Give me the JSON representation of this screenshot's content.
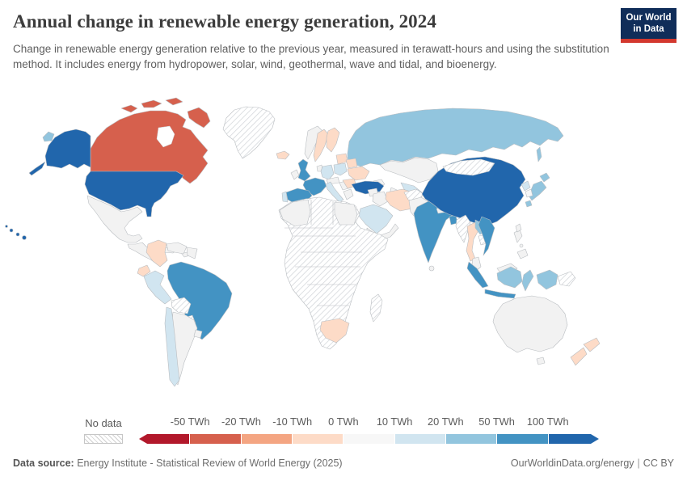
{
  "header": {
    "title": "Annual change in renewable energy generation, 2024",
    "subtitle": "Change in renewable energy generation relative to the previous year, measured in terawatt-hours and using the substitution method. It includes energy from hydropower, solar, wind, geothermal, wave and tidal, and bioenergy.",
    "logo": {
      "line1": "Our World",
      "line2": "in Data",
      "bg": "#102d59",
      "accent": "#d3382e"
    }
  },
  "legend": {
    "no_data_label": "No data",
    "tick_labels": [
      "-50 TWh",
      "-20 TWh",
      "-10 TWh",
      "0 TWh",
      "10 TWh",
      "20 TWh",
      "50 TWh",
      "100 TWh"
    ],
    "colors": [
      "#b2182b",
      "#d6604d",
      "#f4a582",
      "#fddbc7",
      "#f7f7f7",
      "#d1e5f0",
      "#92c5de",
      "#4393c3",
      "#2166ac"
    ]
  },
  "footer": {
    "source_label": "Data source:",
    "source_text": " Energy Institute - Statistical Review of World Energy (2025)",
    "url": "OurWorldinData.org/energy",
    "separator": "|",
    "license": "CC BY"
  },
  "chart_data": {
    "type": "choropleth_map",
    "title": "Annual change in renewable energy generation, 2024",
    "unit": "TWh",
    "legend_buckets": [
      {
        "color": "#b2182b",
        "range": "below -50 TWh"
      },
      {
        "color": "#d6604d",
        "range": "-50 to -20 TWh"
      },
      {
        "color": "#f4a582",
        "range": "-20 to -10 TWh"
      },
      {
        "color": "#fddbc7",
        "range": "-10 to 0 TWh"
      },
      {
        "color": "#f7f7f7",
        "range": "0 to 10 TWh"
      },
      {
        "color": "#d1e5f0",
        "range": "10 to 20 TWh"
      },
      {
        "color": "#92c5de",
        "range": "20 to 50 TWh"
      },
      {
        "color": "#4393c3",
        "range": "50 to 100 TWh"
      },
      {
        "color": "#2166ac",
        "range": "above 100 TWh"
      },
      {
        "color": "no-data",
        "range": "No data"
      }
    ],
    "countries": {
      "canada": {
        "label": "Canada",
        "color": "#d6604d"
      },
      "usa": {
        "label": "United States",
        "color": "#2166ac"
      },
      "greenland": {
        "label": "Greenland",
        "color": "no-data"
      },
      "mexico": {
        "label": "Mexico",
        "color": "#f2f2f2"
      },
      "central-america": {
        "label": "Central America",
        "color": "#f2f2f2"
      },
      "cuba": {
        "label": "Cuba",
        "color": "#f2f2f2"
      },
      "hispaniola": {
        "label": "Hispaniola",
        "color": "#f2f2f2"
      },
      "colombia": {
        "label": "Colombia",
        "color": "#fddbc7"
      },
      "venezuela": {
        "label": "Venezuela",
        "color": "#f2f2f2"
      },
      "guyanas": {
        "label": "Guyanas",
        "color": "#f2f2f2"
      },
      "ecuador": {
        "label": "Ecuador",
        "color": "#fddbc7"
      },
      "peru": {
        "label": "Peru",
        "color": "#d1e5f0"
      },
      "brazil": {
        "label": "Brazil",
        "color": "#4393c3"
      },
      "bolivia": {
        "label": "Bolivia",
        "color": "no-data"
      },
      "paraguay": {
        "label": "Paraguay",
        "color": "no-data"
      },
      "chile": {
        "label": "Chile",
        "color": "#d1e5f0"
      },
      "argentina": {
        "label": "Argentina",
        "color": "#f2f2f2"
      },
      "uruguay": {
        "label": "Uruguay",
        "color": "#f2f2f2"
      },
      "iceland": {
        "label": "Iceland",
        "color": "#fddbc7"
      },
      "norway": {
        "label": "Norway",
        "color": "#f2f2f2"
      },
      "sweden": {
        "label": "Sweden",
        "color": "#fddbc7"
      },
      "finland": {
        "label": "Finland",
        "color": "#fddbc7"
      },
      "baltics": {
        "label": "Baltic states",
        "color": "#fddbc7"
      },
      "uk": {
        "label": "United Kingdom",
        "color": "#4393c3"
      },
      "ireland": {
        "label": "Ireland",
        "color": "#f2f2f2"
      },
      "france": {
        "label": "France",
        "color": "#4393c3"
      },
      "spain": {
        "label": "Spain",
        "color": "#4393c3"
      },
      "portugal": {
        "label": "Portugal",
        "color": "#d1e5f0"
      },
      "germany": {
        "label": "Germany",
        "color": "#d1e5f0"
      },
      "low-countries": {
        "label": "Benelux",
        "color": "#f2f2f2"
      },
      "poland": {
        "label": "Poland",
        "color": "#d1e5f0"
      },
      "central-europe": {
        "label": "Central Europe",
        "color": "#f2f2f2"
      },
      "italy": {
        "label": "Italy",
        "color": "#d1e5f0"
      },
      "balkans": {
        "label": "Balkans",
        "color": "#f2f2f2"
      },
      "greece": {
        "label": "Greece",
        "color": "#f2f2f2"
      },
      "romania": {
        "label": "Romania",
        "color": "#fddbc7"
      },
      "belarus": {
        "label": "Belarus",
        "color": "#fddbc7"
      },
      "ukraine": {
        "label": "Ukraine",
        "color": "#fddbc7"
      },
      "turkey": {
        "label": "Turkey",
        "color": "#2166ac"
      },
      "russia": {
        "label": "Russia",
        "color": "#92c5de"
      },
      "kazakhstan": {
        "label": "Kazakhstan",
        "color": "#f2f2f2"
      },
      "uzbekistan": {
        "label": "Uzbekistan",
        "color": "#d1e5f0"
      },
      "turkmenistan": {
        "label": "Turkmenistan",
        "color": "#f2f2f2"
      },
      "caucasus": {
        "label": "Caucasus",
        "color": "#f2f2f2"
      },
      "iran": {
        "label": "Iran",
        "color": "#fddbc7"
      },
      "iraq": {
        "label": "Iraq",
        "color": "#f2f2f2"
      },
      "levant": {
        "label": "Levant",
        "color": "#f2f2f2"
      },
      "saudi-arabia": {
        "label": "Saudi Arabia",
        "color": "#d1e5f0"
      },
      "yemen-oman": {
        "label": "Yemen / Oman",
        "color": "#f2f2f2"
      },
      "africa": {
        "label": "Africa (most countries)",
        "color": "no-data"
      },
      "algeria": {
        "label": "Algeria",
        "color": "#f2f2f2"
      },
      "egypt": {
        "label": "Egypt",
        "color": "#f2f2f2"
      },
      "south-africa": {
        "label": "South Africa",
        "color": "#fddbc7"
      },
      "madagascar": {
        "label": "Madagascar",
        "color": "no-data"
      },
      "afghanistan": {
        "label": "Afghanistan",
        "color": "no-data"
      },
      "pakistan": {
        "label": "Pakistan",
        "color": "#f2f2f2"
      },
      "india": {
        "label": "India",
        "color": "#4393c3"
      },
      "nepal": {
        "label": "Nepal",
        "color": "#f2f2f2"
      },
      "bangladesh": {
        "label": "Bangladesh",
        "color": "#4393c3"
      },
      "sri-lanka": {
        "label": "Sri Lanka",
        "color": "#f2f2f2"
      },
      "china": {
        "label": "China",
        "color": "#2166ac"
      },
      "mongolia": {
        "label": "Mongolia",
        "color": "no-data"
      },
      "myanmar": {
        "label": "Myanmar",
        "color": "no-data"
      },
      "thailand": {
        "label": "Thailand",
        "color": "#fddbc7"
      },
      "laos": {
        "label": "Laos",
        "color": "#92c5de"
      },
      "cambodia": {
        "label": "Cambodia",
        "color": "no-data"
      },
      "vietnam": {
        "label": "Vietnam",
        "color": "#4393c3"
      },
      "malaysia": {
        "label": "Malaysia",
        "color": "#f2f2f2"
      },
      "indonesia-west": {
        "label": "Indonesia (Sumatra, Java)",
        "color": "#4393c3"
      },
      "indonesia-east": {
        "label": "Indonesia (Kalimantan, Sulawesi, Papua)",
        "color": "#92c5de"
      },
      "png": {
        "label": "Papua New Guinea",
        "color": "no-data"
      },
      "philippines": {
        "label": "Philippines",
        "color": "#f2f2f2"
      },
      "taiwan": {
        "label": "Taiwan",
        "color": "#f2f2f2"
      },
      "japan": {
        "label": "Japan",
        "color": "#92c5de"
      },
      "north-korea": {
        "label": "North Korea",
        "color": "#d1e5f0"
      },
      "south-korea": {
        "label": "South Korea",
        "color": "#f7f7f7"
      },
      "australia": {
        "label": "Australia",
        "color": "#f2f2f2"
      },
      "tasmania": {
        "label": "Tasmania",
        "color": "#f2f2f2"
      },
      "new-zealand": {
        "label": "New Zealand",
        "color": "#fddbc7"
      }
    }
  }
}
